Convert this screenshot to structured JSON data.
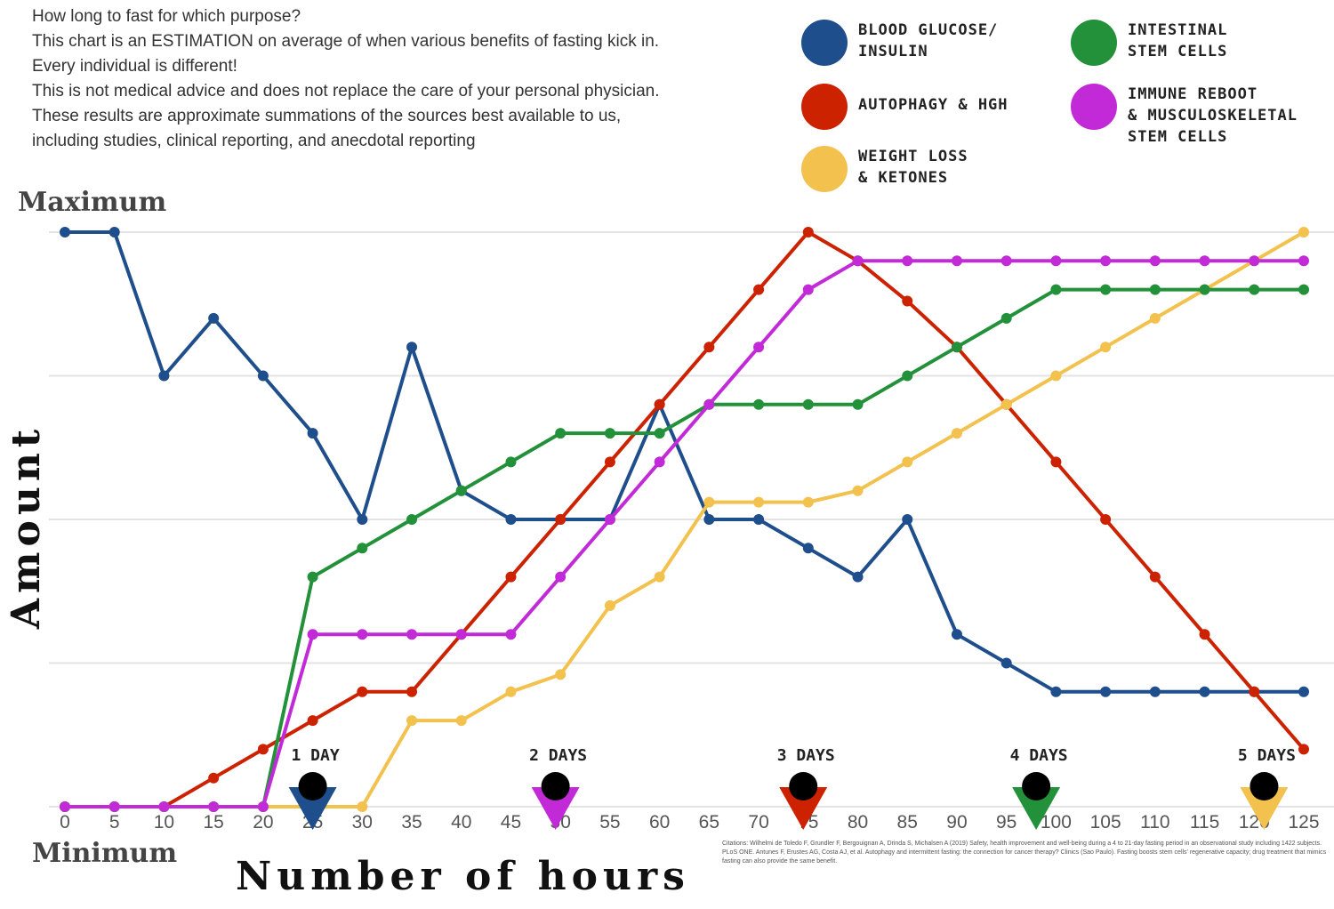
{
  "chart_data": {
    "type": "line",
    "title": "How long to fast for which purpose?",
    "notes": [
      "This chart is an ESTIMATION on average of when various benefits of fasting kick in.",
      "Every individual is different!",
      "This is not medical advice and does not replace the care of your personal physician.",
      "These results are approximate summations of the sources best available to us,",
      "including studies, clinical reporting, and anecdotal reporting"
    ],
    "x_label": "Number of hours",
    "y_label": "Amount",
    "x": [
      0,
      5,
      10,
      15,
      20,
      25,
      30,
      35,
      40,
      45,
      50,
      55,
      60,
      65,
      70,
      75,
      80,
      85,
      90,
      95,
      100,
      105,
      110,
      115,
      120,
      125
    ],
    "xlim": [
      0,
      125
    ],
    "xticks": [
      0,
      5,
      10,
      15,
      20,
      25,
      30,
      35,
      40,
      45,
      50,
      55,
      60,
      65,
      70,
      75,
      80,
      85,
      90,
      95,
      100,
      105,
      110,
      115,
      120,
      125
    ],
    "ylim": [
      0,
      100
    ],
    "yticks": [
      {
        "value": 100,
        "label": "Maximum"
      },
      {
        "value": 0,
        "label": "Minimum"
      }
    ],
    "ygrid": [
      0,
      25,
      50,
      75,
      100
    ],
    "grid": true,
    "series": [
      {
        "name": "BLOOD GLUCOSE/\nINSULIN",
        "color": "#1f4e8c",
        "values": [
          100,
          100,
          75,
          85,
          75,
          65,
          50,
          80,
          55,
          50,
          50,
          50,
          70,
          50,
          50,
          45,
          40,
          50,
          30,
          25,
          20,
          20,
          20,
          20,
          20,
          20
        ]
      },
      {
        "name": "AUTOPHAGY & HGH",
        "color": "#cc2200",
        "values": [
          0,
          0,
          0,
          5,
          10,
          15,
          20,
          20,
          30,
          40,
          50,
          60,
          70,
          80,
          90,
          100,
          95,
          88,
          80,
          70,
          60,
          50,
          40,
          30,
          20,
          10
        ]
      },
      {
        "name": "WEIGHT LOSS\n& KETONES",
        "color": "#f2c14e",
        "values": [
          0,
          0,
          0,
          0,
          0,
          0,
          0,
          15,
          15,
          20,
          23,
          35,
          40,
          53,
          53,
          53,
          55,
          60,
          65,
          70,
          75,
          80,
          85,
          90,
          95,
          100
        ]
      },
      {
        "name": "INTESTINAL\nSTEM CELLS",
        "color": "#23903a",
        "values": [
          0,
          0,
          0,
          0,
          0,
          40,
          45,
          50,
          55,
          60,
          65,
          65,
          65,
          70,
          70,
          70,
          70,
          75,
          80,
          85,
          90,
          90,
          90,
          90,
          90,
          90
        ]
      },
      {
        "name": "IMMUNE REBOOT\n& MUSCULOSKELETAL\nSTEM CELLS",
        "color": "#c22ad8",
        "values": [
          0,
          0,
          0,
          0,
          0,
          30,
          30,
          30,
          30,
          30,
          40,
          50,
          60,
          70,
          80,
          90,
          95,
          95,
          95,
          95,
          95,
          95,
          95,
          95,
          95,
          95
        ]
      }
    ],
    "markers": [
      {
        "label": "1 DAY",
        "x": 25,
        "color": "#1f4e8c"
      },
      {
        "label": "2 DAYS",
        "x": 49.5,
        "color": "#c22ad8"
      },
      {
        "label": "3 DAYS",
        "x": 74.5,
        "color": "#cc2200"
      },
      {
        "label": "4 DAYS",
        "x": 98,
        "color": "#23903a"
      },
      {
        "label": "5 DAYS",
        "x": 121,
        "color": "#f2c14e"
      }
    ],
    "citations": "Citations: Wilhelmi de Toledo F, Grundler F, Bergouignan A, Drinda S, Michalsen A (2019) Safety, health improvement and well-being during a 4 to 21-day fasting period in an observational study including 1422 subjects. PLoS ONE. Antunes F, Erustes AG, Costa AJ, et al. Autophagy and intermittent fasting: the connection for cancer therapy? Clinics (Sao Paulo). Fasting boosts stem cells' regenerative capacity; drug treatment that mimics fasting can also provide the same benefit."
  }
}
